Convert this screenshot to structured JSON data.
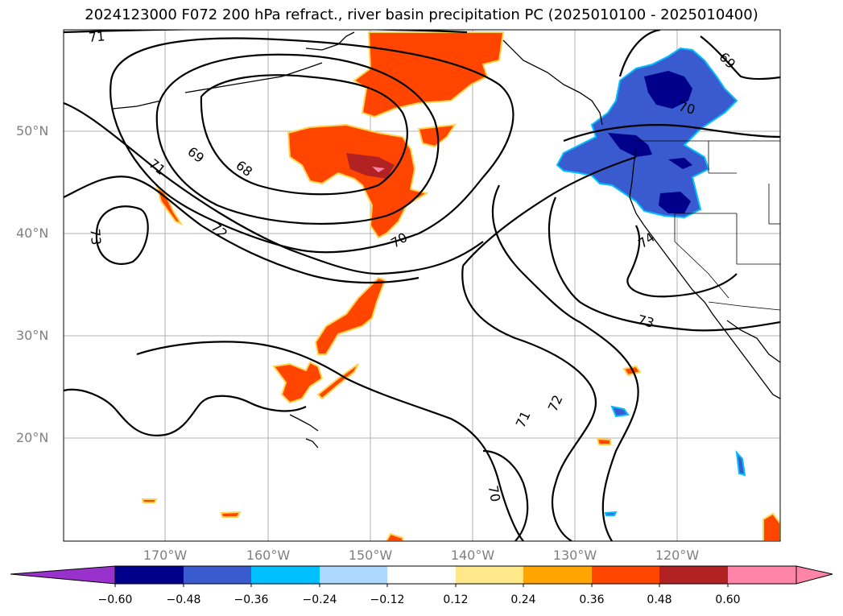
{
  "title": "2024123000 F072 200 hPa refract., river basin precipitation PC (2025010100 - 2025010400)",
  "lat_labels": [
    "50°N",
    "40°N",
    "30°N",
    "20°N"
  ],
  "lon_labels": [
    "170°W",
    "160°W",
    "150°W",
    "140°W",
    "130°W",
    "120°W"
  ],
  "contour_labels": [
    "71",
    "69",
    "68",
    "71",
    "72",
    "73",
    "70",
    "70",
    "69",
    "74",
    "73",
    "71",
    "72",
    "70"
  ],
  "colorbar": {
    "ticks": [
      "−0.60",
      "−0.48",
      "−0.36",
      "−0.24",
      "−0.12",
      "0.12",
      "0.24",
      "0.36",
      "0.48",
      "0.60"
    ],
    "colors": [
      "#9932cc",
      "#00008b",
      "#3a5bcf",
      "#00bfff",
      "#add8ff",
      "#ffffff",
      "#ffe88a",
      "#ffa500",
      "#ff4500",
      "#b22222",
      "#ff85a8"
    ]
  },
  "colors": {
    "positive_fill": "#ff4500",
    "positive_strong": "#b22222",
    "negative_fill": "#3a5bcf",
    "negative_strong": "#00008b",
    "grid": "#b0b0b0",
    "axis_label": "#808080"
  }
}
